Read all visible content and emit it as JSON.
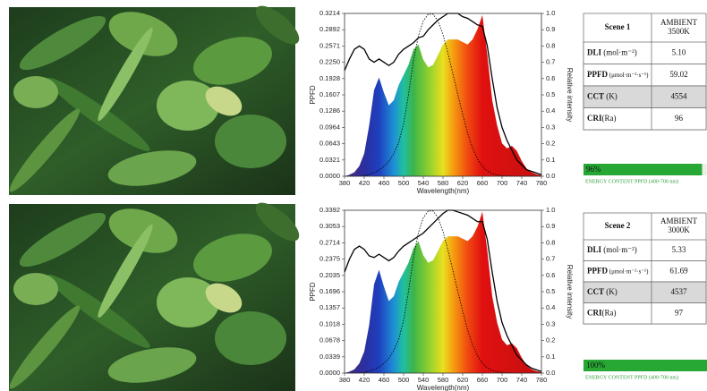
{
  "chart_data": [
    {
      "type": "area",
      "xlabel": "Wavelength(nm)",
      "ylabel": "PPFD",
      "y2label": "Relative intensity",
      "x": [
        380,
        390,
        400,
        410,
        420,
        430,
        440,
        450,
        460,
        470,
        480,
        490,
        500,
        510,
        520,
        530,
        540,
        550,
        560,
        570,
        580,
        590,
        600,
        610,
        620,
        630,
        640,
        650,
        660,
        670,
        680,
        690,
        700,
        710,
        720,
        730,
        740,
        750,
        760,
        770,
        780
      ],
      "xlim": [
        380,
        780
      ],
      "xticks": [
        380,
        420,
        460,
        500,
        540,
        580,
        620,
        660,
        700,
        740,
        780
      ],
      "ylim": [
        0,
        0.3214
      ],
      "yticks": [
        {
          "value": 0,
          "label": "0.0000"
        },
        0.0321,
        0.0643,
        0.0964,
        0.1286,
        0.1607,
        0.1928,
        {
          "value": 0.225,
          "label": "0.2250"
        },
        0.2571,
        0.2892,
        0.3214
      ],
      "y2lim": [
        0,
        1
      ],
      "y2ticks": [
        {
          "value": 0,
          "label": "0.0"
        },
        0.1,
        0.2,
        0.3,
        0.4,
        0.5,
        0.6,
        0.7,
        0.8,
        0.9,
        {
          "value": 1,
          "label": "1.0"
        }
      ],
      "series": [
        {
          "style": "spectrum",
          "values": [
            0.0,
            0.003,
            0.008,
            0.02,
            0.045,
            0.1,
            0.17,
            0.195,
            0.165,
            0.14,
            0.15,
            0.18,
            0.2,
            0.22,
            0.25,
            0.26,
            0.23,
            0.215,
            0.22,
            0.24,
            0.26,
            0.27,
            0.27,
            0.27,
            0.265,
            0.26,
            0.27,
            0.29,
            0.318,
            0.24,
            0.15,
            0.1,
            0.065,
            0.055,
            0.06,
            0.05,
            0.03,
            0.015,
            0.008,
            0.004,
            0.002
          ]
        },
        {
          "style": "solid",
          "color": "#000000",
          "axis": "y2",
          "values": [
            0.65,
            0.72,
            0.78,
            0.8,
            0.78,
            0.72,
            0.7,
            0.72,
            0.7,
            0.68,
            0.7,
            0.75,
            0.78,
            0.8,
            0.82,
            0.85,
            0.86,
            0.9,
            0.93,
            0.96,
            0.98,
            1.0,
            1.0,
            1.0,
            0.98,
            0.97,
            0.95,
            0.93,
            0.92,
            0.8,
            0.6,
            0.42,
            0.3,
            0.22,
            0.16,
            0.1,
            0.07,
            0.04,
            0.03,
            0.02,
            0.01
          ]
        },
        {
          "style": "dotted",
          "color": "#000000",
          "axis": "y2",
          "values": [
            0,
            0.0001,
            0.0004,
            0.0012,
            0.004,
            0.0116,
            0.023,
            0.038,
            0.06,
            0.091,
            0.139,
            0.208,
            0.323,
            0.503,
            0.71,
            0.862,
            0.954,
            0.995,
            0.995,
            0.952,
            0.87,
            0.757,
            0.631,
            0.503,
            0.381,
            0.265,
            0.175,
            0.107,
            0.061,
            0.032,
            0.017,
            0.008,
            0.004,
            0.002,
            0.001,
            0,
            0,
            0,
            0,
            0,
            0
          ]
        }
      ]
    },
    {
      "type": "area",
      "xlabel": "Wavelength(nm)",
      "ylabel": "PPFD",
      "y2label": "Relative intensity",
      "x": [
        380,
        390,
        400,
        410,
        420,
        430,
        440,
        450,
        460,
        470,
        480,
        490,
        500,
        510,
        520,
        530,
        540,
        550,
        560,
        570,
        580,
        590,
        600,
        610,
        620,
        630,
        640,
        650,
        660,
        670,
        680,
        690,
        700,
        710,
        720,
        730,
        740,
        750,
        760,
        770,
        780
      ],
      "xlim": [
        380,
        780
      ],
      "xticks": [
        380,
        420,
        460,
        500,
        540,
        580,
        620,
        660,
        700,
        740,
        780
      ],
      "ylim": [
        0,
        0.3392
      ],
      "yticks": [
        {
          "value": 0,
          "label": "0.0000"
        },
        0.0339,
        0.0678,
        0.1018,
        0.1357,
        0.1696,
        0.2035,
        0.2375,
        0.2714,
        0.3053,
        0.3392
      ],
      "y2lim": [
        0,
        1
      ],
      "y2ticks": [
        {
          "value": 0,
          "label": "0.0"
        },
        0.1,
        0.2,
        0.3,
        0.4,
        0.5,
        0.6,
        0.7,
        0.8,
        0.9,
        {
          "value": 1,
          "label": "1.0"
        }
      ],
      "series": [
        {
          "style": "spectrum",
          "values": [
            0.0,
            0.003,
            0.008,
            0.02,
            0.045,
            0.1,
            0.185,
            0.215,
            0.18,
            0.15,
            0.16,
            0.19,
            0.21,
            0.23,
            0.26,
            0.275,
            0.245,
            0.23,
            0.235,
            0.255,
            0.275,
            0.285,
            0.285,
            0.285,
            0.28,
            0.275,
            0.285,
            0.305,
            0.336,
            0.255,
            0.16,
            0.105,
            0.07,
            0.058,
            0.062,
            0.052,
            0.032,
            0.016,
            0.008,
            0.004,
            0.002
          ]
        },
        {
          "style": "solid",
          "color": "#000000",
          "axis": "y2",
          "values": [
            0.62,
            0.7,
            0.76,
            0.78,
            0.76,
            0.72,
            0.71,
            0.73,
            0.71,
            0.69,
            0.71,
            0.75,
            0.78,
            0.8,
            0.82,
            0.84,
            0.86,
            0.89,
            0.92,
            0.95,
            0.98,
            1.0,
            1.0,
            0.99,
            0.98,
            0.97,
            0.95,
            0.93,
            0.93,
            0.82,
            0.62,
            0.44,
            0.31,
            0.23,
            0.17,
            0.11,
            0.08,
            0.05,
            0.03,
            0.02,
            0.01
          ]
        },
        {
          "style": "dotted",
          "color": "#000000",
          "axis": "y2",
          "values": [
            0,
            0.0001,
            0.0004,
            0.0012,
            0.004,
            0.0116,
            0.023,
            0.038,
            0.06,
            0.091,
            0.139,
            0.208,
            0.323,
            0.503,
            0.71,
            0.862,
            0.954,
            0.995,
            0.995,
            0.952,
            0.87,
            0.757,
            0.631,
            0.503,
            0.381,
            0.265,
            0.175,
            0.107,
            0.061,
            0.032,
            0.017,
            0.008,
            0.004,
            0.002,
            0.001,
            0,
            0,
            0,
            0,
            0,
            0
          ]
        }
      ]
    }
  ],
  "scenes": [
    {
      "title": "Scene 1",
      "condition": [
        "AMBIENT",
        "3500K"
      ],
      "rows": [
        [
          "DLI",
          " (mol·m⁻²)",
          "5.10"
        ],
        [
          "PPFD",
          " (μmol·m⁻²·s⁻¹)",
          "59.02"
        ],
        [
          "CCT",
          " (K)",
          "4554"
        ],
        [
          "CRI",
          "(Ra)",
          "96"
        ]
      ],
      "energy": {
        "value": 96,
        "label": "96%",
        "caption": "ENERGY CONTENT PPFD (400-700 nm)"
      }
    },
    {
      "title": "Scene 2",
      "condition": [
        "AMBIENT",
        "3000K"
      ],
      "rows": [
        [
          "DLI",
          " (mol·m⁻²)",
          "5.33"
        ],
        [
          "PPFD",
          " (μmol·m⁻²·s⁻¹)",
          "61.69"
        ],
        [
          "CCT",
          " (K)",
          "4537"
        ],
        [
          "CRI",
          "(Ra)",
          "97"
        ]
      ],
      "energy": {
        "value": 100,
        "label": "100%",
        "caption": "ENERGY CONTENT PPFD (400-700 nm)"
      }
    }
  ]
}
